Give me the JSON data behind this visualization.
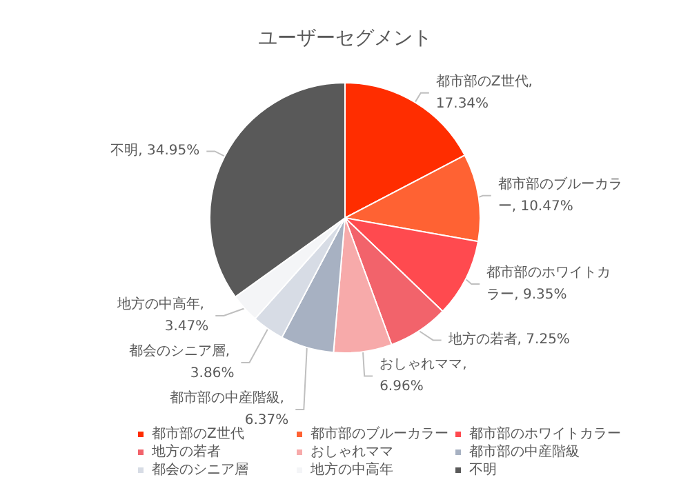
{
  "chart_data": {
    "type": "pie",
    "title": "ユーザーセグメント",
    "categories": [
      "都市部のZ世代",
      "都市部のブルーカラー",
      "都市部のホワイトカラー",
      "地方の若者",
      "おしゃれママ",
      "都市部の中産階級",
      "都会のシニア層",
      "地方の中高年",
      "不明"
    ],
    "values": [
      17.34,
      10.47,
      9.35,
      7.25,
      6.96,
      6.37,
      3.86,
      3.47,
      34.95
    ],
    "value_labels": [
      "都市部のZ世代, 17.34%",
      "都市部のブルーカラー, 10.47%",
      "都市部のホワイトカラー, 9.35%",
      "地方の若者, 7.25%",
      "おしゃれママ, 6.96%",
      "都市部の中産階級, 6.37%",
      "都会のシニア層, 3.86%",
      "地方の中高年, 3.47%",
      "不明, 34.95%"
    ],
    "colors": [
      "#ff2d00",
      "#ff6233",
      "#ff4a4f",
      "#f2636b",
      "#f7aaaa",
      "#a7b1c2",
      "#d7dce5",
      "#f4f5f7",
      "#595959"
    ],
    "legend": "bottom"
  }
}
